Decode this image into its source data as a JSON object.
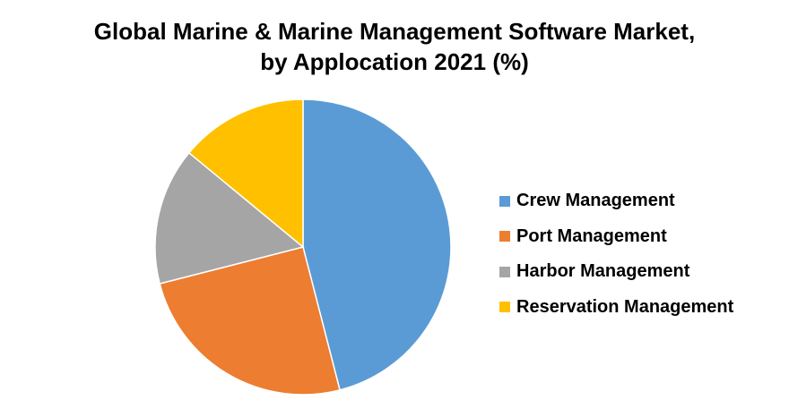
{
  "chart_data": {
    "type": "pie",
    "title": "Global Marine & Marine Management Software Market,",
    "subtitle": "by Applocation 2021 (%)",
    "categories": [
      "Crew Management",
      "Port Management",
      "Harbor Management",
      "Reservation Management"
    ],
    "values": [
      46,
      25,
      15,
      14
    ],
    "unit": "%",
    "colors": [
      "#5B9BD5",
      "#ED7D31",
      "#A5A5A5",
      "#FFC000"
    ],
    "legend_position": "right",
    "start_angle": "12 o'clock",
    "direction": "clockwise"
  }
}
